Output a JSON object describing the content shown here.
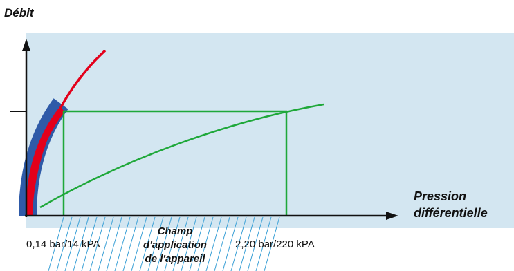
{
  "diagram": {
    "y_axis_title": "Débit",
    "x_axis_title_line1": "Pression",
    "x_axis_title_line2": "différentielle",
    "left_limit_label": "0,14 bar/14 kPA",
    "right_limit_label": "2,20 bar/220 kPA",
    "range_label_line1": "Champ",
    "range_label_line2": "d'application",
    "range_label_line3": "de l'appareil"
  },
  "colors": {
    "background_panel": "#d3e6f1",
    "red_curve": "#e3001b",
    "blue_band": "#2e5aa8",
    "green_curve": "#1fa83a",
    "axis": "#111111",
    "hatch": "#3aa0d6"
  }
}
